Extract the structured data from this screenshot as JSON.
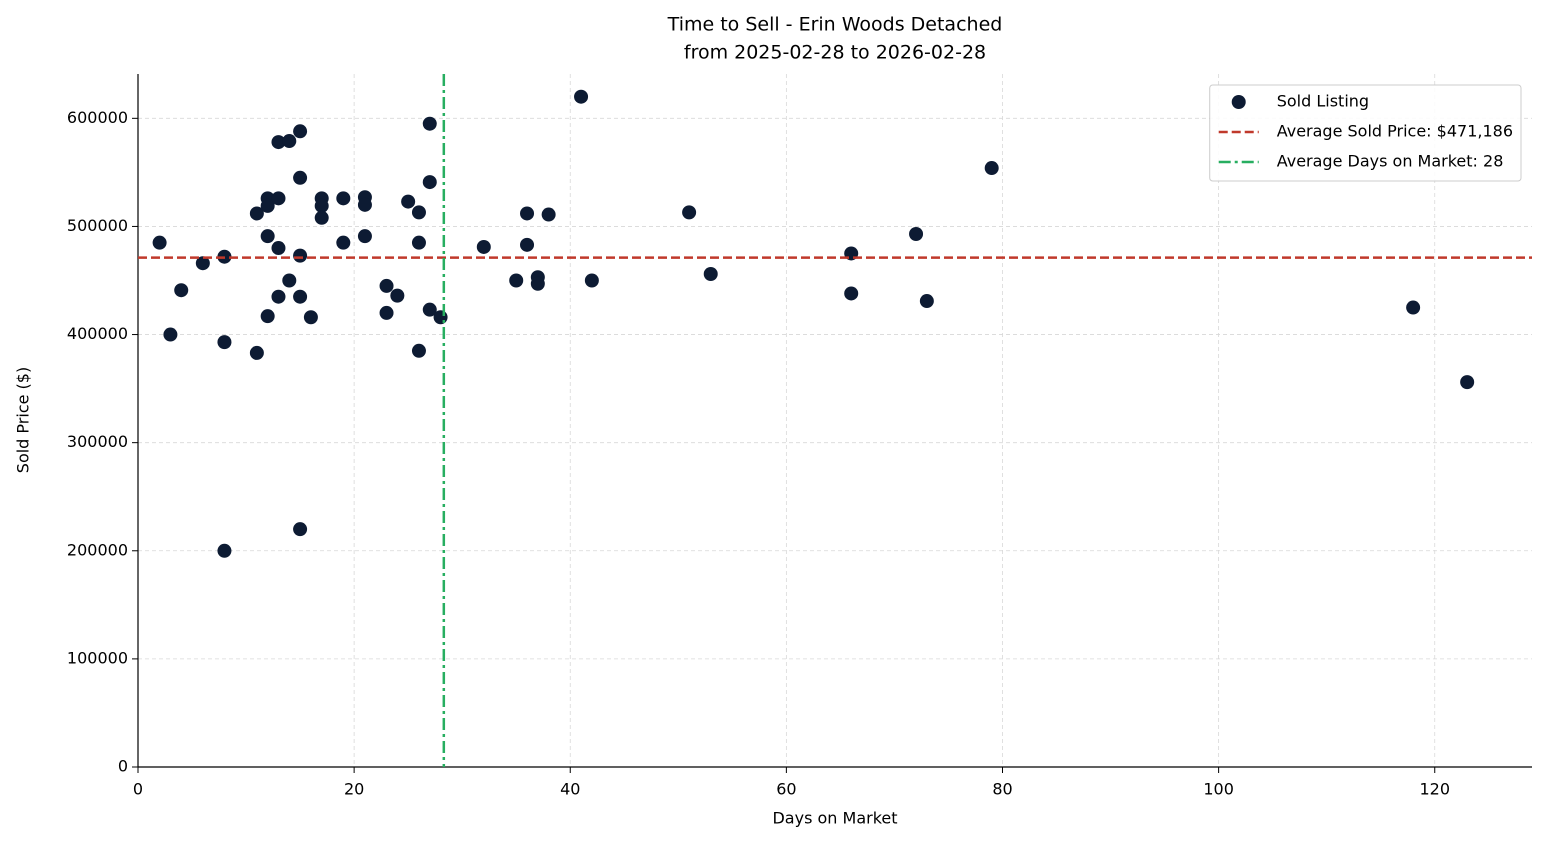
{
  "chart_data": {
    "type": "scatter",
    "title": "Time to Sell - Erin Woods Detached",
    "subtitle": "from 2025-02-28 to 2026-02-28",
    "xlabel": "Days on Market",
    "ylabel": "Sold Price ($)",
    "xlim": [
      0,
      129
    ],
    "xticks": [
      0,
      20,
      40,
      60,
      80,
      100,
      120
    ],
    "ylim": [
      0,
      641000
    ],
    "yticks": [
      0,
      100000,
      200000,
      300000,
      400000,
      500000,
      600000
    ],
    "grid": true,
    "legend": "upper right",
    "series": [
      {
        "name": "Sold Listing",
        "color": "#0d1b33",
        "x": [
          2,
          3,
          4,
          6,
          8,
          8,
          8,
          11,
          11,
          12,
          12,
          12,
          12,
          13,
          13,
          13,
          13,
          14,
          14,
          15,
          15,
          15,
          15,
          15,
          16,
          17,
          17,
          17,
          19,
          19,
          21,
          21,
          21,
          23,
          23,
          24,
          25,
          26,
          26,
          26,
          27,
          27,
          27,
          28,
          32,
          35,
          36,
          36,
          37,
          37,
          38,
          41,
          42,
          51,
          53,
          66,
          66,
          72,
          73,
          79,
          118,
          123
        ],
        "values": [
          485000,
          400000,
          441000,
          466000,
          472000,
          393000,
          200000,
          512000,
          383000,
          526000,
          519000,
          491000,
          417000,
          526000,
          578000,
          480000,
          435000,
          579000,
          450000,
          588000,
          545000,
          473000,
          435000,
          220000,
          416000,
          526000,
          519000,
          508000,
          526000,
          485000,
          527000,
          520000,
          491000,
          445000,
          420000,
          436000,
          523000,
          513000,
          485000,
          385000,
          595000,
          541000,
          423000,
          416000,
          481000,
          450000,
          512000,
          483000,
          453000,
          447000,
          511000,
          620000,
          450000,
          513000,
          456000,
          475000,
          438000,
          493000,
          431000,
          554000,
          425000,
          356000
        ]
      }
    ],
    "reference_lines": [
      {
        "orientation": "horizontal",
        "value": 471186,
        "label": "Average Sold Price: $471,186",
        "color": "#c0392b",
        "style": "dashed"
      },
      {
        "orientation": "vertical",
        "value": 28.3,
        "label": "Average Days on Market: 28",
        "color": "#27ae60",
        "style": "dashdot"
      }
    ]
  }
}
